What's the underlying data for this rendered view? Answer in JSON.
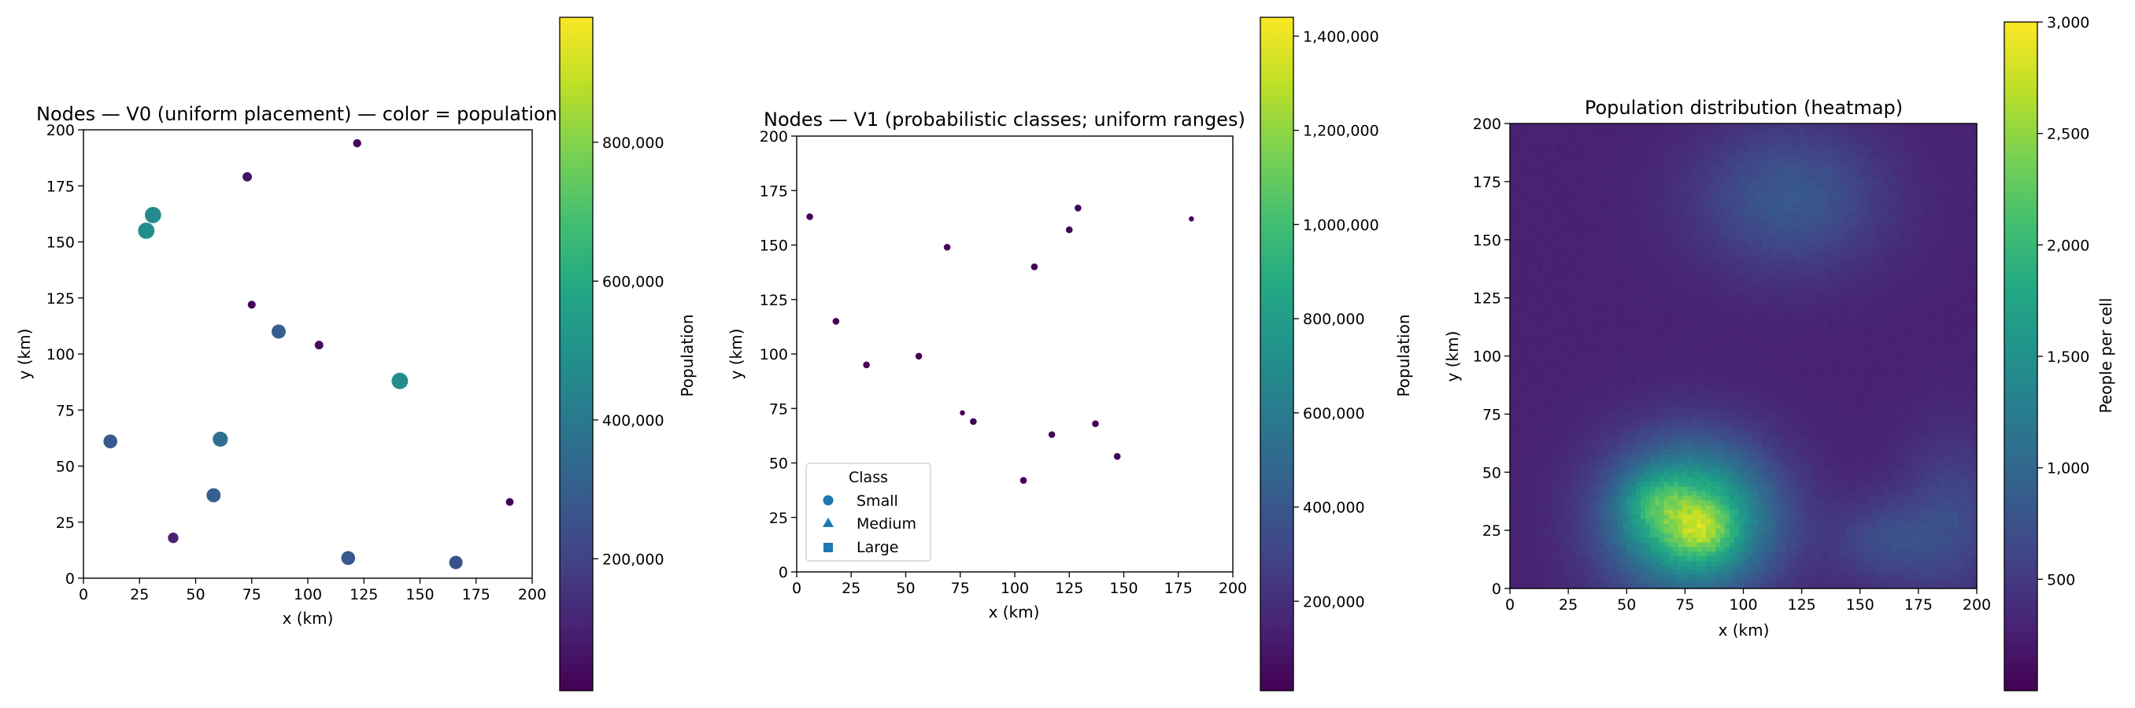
{
  "chart_data": [
    {
      "type": "scatter",
      "title": "Nodes — V0 (uniform placement) — color = population",
      "xlabel": "x (km)",
      "ylabel": "y (km)",
      "xlim": [
        0,
        200
      ],
      "ylim": [
        0,
        200
      ],
      "xticks": [
        0,
        25,
        50,
        75,
        100,
        125,
        150,
        175,
        200
      ],
      "yticks": [
        0,
        25,
        50,
        75,
        100,
        125,
        150,
        175,
        200
      ],
      "points": [
        {
          "x": 122,
          "y": 194,
          "pop": 30000
        },
        {
          "x": 73,
          "y": 179,
          "pop": 60000
        },
        {
          "x": 31,
          "y": 162,
          "pop": 470000
        },
        {
          "x": 28,
          "y": 155,
          "pop": 480000
        },
        {
          "x": 75,
          "y": 122,
          "pop": 25000
        },
        {
          "x": 87,
          "y": 110,
          "pop": 300000
        },
        {
          "x": 105,
          "y": 104,
          "pop": 40000
        },
        {
          "x": 141,
          "y": 88,
          "pop": 480000
        },
        {
          "x": 12,
          "y": 61,
          "pop": 280000
        },
        {
          "x": 61,
          "y": 62,
          "pop": 370000
        },
        {
          "x": 58,
          "y": 37,
          "pop": 300000
        },
        {
          "x": 40,
          "y": 18,
          "pop": 100000
        },
        {
          "x": 118,
          "y": 9,
          "pop": 280000
        },
        {
          "x": 166,
          "y": 7,
          "pop": 250000
        },
        {
          "x": 190,
          "y": 34,
          "pop": 20000
        }
      ],
      "colorbar": {
        "label": "Population",
        "min": 10000,
        "max": 980000,
        "ticks": [
          200000,
          400000,
          600000,
          800000
        ],
        "tick_labels": [
          "200,000",
          "400,000",
          "600,000",
          "800,000"
        ]
      }
    },
    {
      "type": "scatter",
      "title": "Nodes — V1 (probabilistic classes; uniform ranges)",
      "xlabel": "x (km)",
      "ylabel": "y (km)",
      "xlim": [
        0,
        200
      ],
      "ylim": [
        0,
        200
      ],
      "xticks": [
        0,
        25,
        50,
        75,
        100,
        125,
        150,
        175,
        200
      ],
      "yticks": [
        0,
        25,
        50,
        75,
        100,
        125,
        150,
        175,
        200
      ],
      "points": [
        {
          "x": 6,
          "y": 163,
          "pop": 20000
        },
        {
          "x": 18,
          "y": 115,
          "pop": 15000
        },
        {
          "x": 32,
          "y": 95,
          "pop": 22000
        },
        {
          "x": 56,
          "y": 99,
          "pop": 25000
        },
        {
          "x": 69,
          "y": 149,
          "pop": 24000
        },
        {
          "x": 76,
          "y": 73,
          "pop": 12000
        },
        {
          "x": 81,
          "y": 69,
          "pop": 18000
        },
        {
          "x": 104,
          "y": 42,
          "pop": 22000
        },
        {
          "x": 109,
          "y": 140,
          "pop": 20000
        },
        {
          "x": 117,
          "y": 63,
          "pop": 22000
        },
        {
          "x": 125,
          "y": 157,
          "pop": 20000
        },
        {
          "x": 129,
          "y": 167,
          "pop": 17000
        },
        {
          "x": 137,
          "y": 68,
          "pop": 16000
        },
        {
          "x": 147,
          "y": 53,
          "pop": 20000
        },
        {
          "x": 181,
          "y": 162,
          "pop": 10000
        }
      ],
      "legend": {
        "title": "Class",
        "entries": [
          {
            "label": "Small",
            "marker": "circle"
          },
          {
            "label": "Medium",
            "marker": "triangle"
          },
          {
            "label": "Large",
            "marker": "square"
          }
        ],
        "color": "#1f77b4",
        "placement": "lower-left"
      },
      "colorbar": {
        "label": "Population",
        "min": 10000,
        "max": 1440000,
        "ticks": [
          200000,
          400000,
          600000,
          800000,
          1000000,
          1200000,
          1400000
        ],
        "tick_labels": [
          "200,000",
          "400,000",
          "600,000",
          "800,000",
          "1,000,000",
          "1,200,000",
          "1,400,000"
        ]
      }
    },
    {
      "type": "heatmap",
      "title": "Population distribution (heatmap)",
      "xlabel": "x (km)",
      "ylabel": "y (km)",
      "xlim": [
        0,
        200
      ],
      "ylim": [
        0,
        200
      ],
      "xticks": [
        0,
        25,
        50,
        75,
        100,
        125,
        150,
        175,
        200
      ],
      "yticks": [
        0,
        25,
        50,
        75,
        100,
        125,
        150,
        175,
        200
      ],
      "baseline": 280,
      "blobs": [
        {
          "x": 78,
          "y": 30,
          "sx": 24,
          "sy": 22,
          "amp": 1900
        },
        {
          "x": 82,
          "y": 25,
          "sx": 9,
          "sy": 8,
          "amp": 650
        },
        {
          "x": 62,
          "y": 37,
          "sx": 10,
          "sy": 9,
          "amp": 450
        },
        {
          "x": 120,
          "y": 168,
          "sx": 28,
          "sy": 22,
          "amp": 550
        },
        {
          "x": 160,
          "y": 20,
          "sx": 16,
          "sy": 13,
          "amp": 380
        },
        {
          "x": 190,
          "y": 30,
          "sx": 16,
          "sy": 25,
          "amp": 380
        }
      ],
      "colorbar": {
        "label": "People per cell",
        "min": 0,
        "max": 3000,
        "ticks": [
          500,
          1000,
          1500,
          2000,
          2500,
          3000
        ],
        "tick_labels": [
          "500",
          "1,000",
          "1,500",
          "2,000",
          "2,500",
          "3,000"
        ]
      }
    }
  ]
}
